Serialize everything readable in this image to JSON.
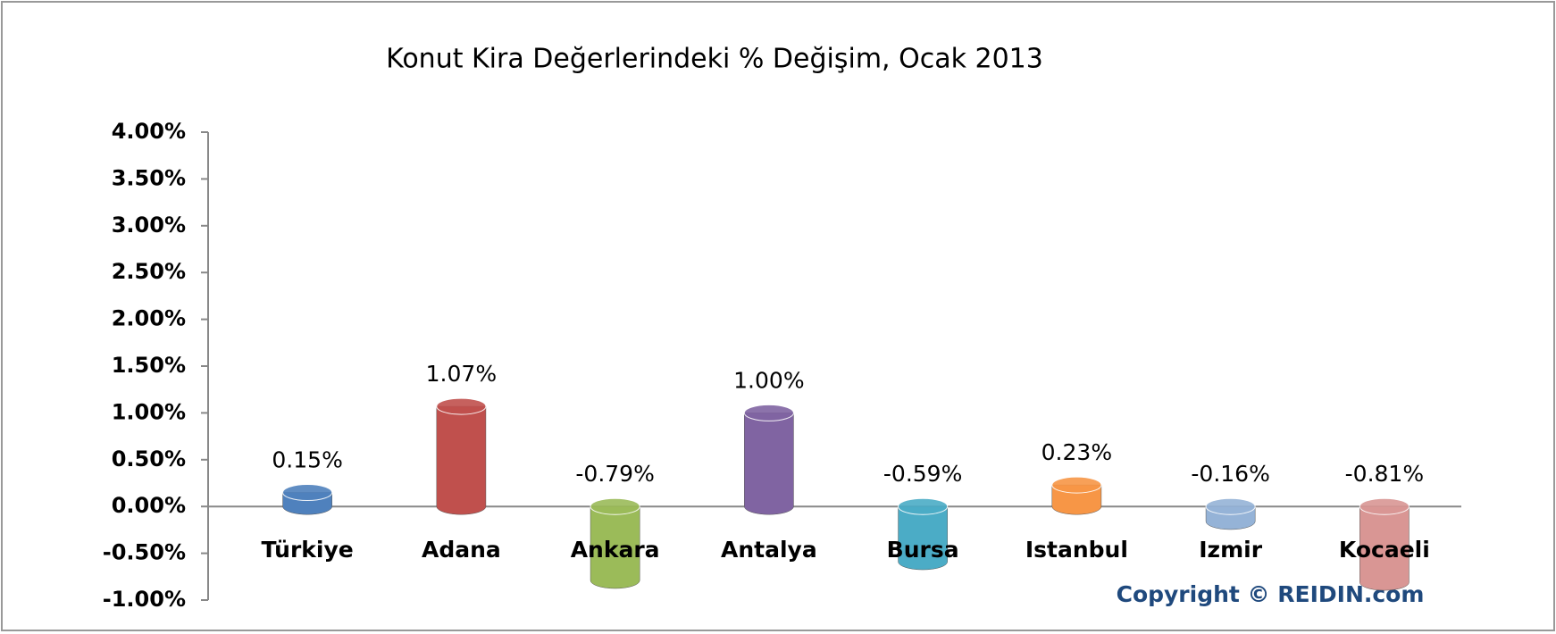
{
  "chart_data": {
    "type": "bar",
    "title": "Konut Kira Değerlerindeki % Değişim, Ocak 2013",
    "categories": [
      "Türkiye",
      "Adana",
      "Ankara",
      "Antalya",
      "Bursa",
      "Istanbul",
      "Izmir",
      "Kocaeli"
    ],
    "values": [
      0.15,
      1.07,
      -0.79,
      1.0,
      -0.59,
      0.23,
      -0.16,
      -0.81
    ],
    "value_labels": [
      "0.15%",
      "1.07%",
      "-0.79%",
      "1.00%",
      "-0.59%",
      "0.23%",
      "-0.16%",
      "-0.81%"
    ],
    "colors": [
      "#4f81bd",
      "#c0504d",
      "#9bbb59",
      "#8064a2",
      "#4bacc6",
      "#f79646",
      "#95b3d7",
      "#d99694"
    ],
    "ylim": [
      -1,
      4
    ],
    "yticks": [
      {
        "value": 4,
        "label": "4.00%"
      },
      {
        "value": 3.5,
        "label": "3.50%"
      },
      {
        "value": 3,
        "label": "3.00%"
      },
      {
        "value": 2.5,
        "label": "2.50%"
      },
      {
        "value": 2,
        "label": "2.00%"
      },
      {
        "value": 1.5,
        "label": "1.50%"
      },
      {
        "value": 1,
        "label": "1.00%"
      },
      {
        "value": 0.5,
        "label": "0.50%"
      },
      {
        "value": 0,
        "label": "0.00%"
      },
      {
        "value": -0.5,
        "label": "-0.50%"
      },
      {
        "value": -1,
        "label": "-1.00%"
      }
    ],
    "annotation": "Copyright © REIDIN.com"
  }
}
